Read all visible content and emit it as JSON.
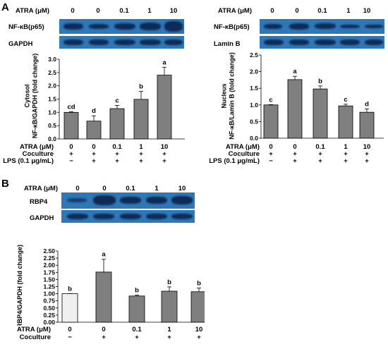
{
  "panel_a": {
    "letter": "A",
    "left": {
      "atra_label": "ATRA (μM)",
      "doses": [
        "0",
        "0",
        "0.1",
        "1",
        "10"
      ],
      "blot_labels": [
        "NF-κB(p65)",
        "GAPDH"
      ],
      "condition_rows": [
        {
          "label": "ATRA (μM)",
          "values": [
            "0",
            "0",
            "0.1",
            "1",
            "10"
          ]
        },
        {
          "label": "Coculture",
          "values": [
            "+",
            "+",
            "+",
            "+",
            "+"
          ]
        },
        {
          "label": "LPS (0.1 μg/mL)",
          "values": [
            "−",
            "+",
            "+",
            "+",
            "+"
          ]
        }
      ]
    },
    "right": {
      "atra_label": "ATRA (μM)",
      "doses": [
        "0",
        "0",
        "0.1",
        "1",
        "10"
      ],
      "blot_labels": [
        "NF-κB(p65)",
        "Lamin B"
      ],
      "condition_rows": [
        {
          "label": "ATRA (μM)",
          "values": [
            "0",
            "0",
            "0.1",
            "1",
            "10"
          ]
        },
        {
          "label": "Coculture",
          "values": [
            "+",
            "+",
            "+",
            "+",
            "+"
          ]
        },
        {
          "label": "LPS (0.1 μg/mL)",
          "values": [
            "−",
            "+",
            "+",
            "+",
            "+"
          ]
        }
      ]
    }
  },
  "panel_b": {
    "letter": "B",
    "atra_label": "ATRA (μM)",
    "doses": [
      "0",
      "0",
      "0.1",
      "1",
      "10"
    ],
    "blot_labels": [
      "RBP4",
      "GAPDH"
    ],
    "condition_rows": [
      {
        "label": "ATRA (μM)",
        "values": [
          "0",
          "0",
          "0.1",
          "1",
          "10"
        ]
      },
      {
        "label": "Coculture",
        "values": [
          "−",
          "+",
          "+",
          "+",
          "+"
        ]
      }
    ]
  },
  "chart_data": [
    {
      "type": "bar",
      "categories": [
        "0",
        "0",
        "0.1",
        "1",
        "10"
      ],
      "values": [
        1.0,
        0.67,
        1.14,
        1.49,
        2.4
      ],
      "errors": [
        0.02,
        0.2,
        0.12,
        0.3,
        0.3
      ],
      "letters": [
        "cd",
        "d",
        "c",
        "b",
        "a"
      ],
      "ylabel": "Cytosol\nNF-κB/GAPDH (fold change)",
      "ylim": [
        0,
        3.0
      ],
      "yticks": [
        "0.0",
        "0.5",
        "1.0",
        "1.5",
        "2.0",
        "2.5",
        "3.0"
      ],
      "bar_color": "#7f7f7f",
      "first_bar_color": "#7f7f7f"
    },
    {
      "type": "bar",
      "categories": [
        "0",
        "0",
        "0.1",
        "1",
        "10"
      ],
      "values": [
        1.0,
        1.76,
        1.48,
        0.97,
        0.78
      ],
      "errors": [
        0.01,
        0.1,
        0.09,
        0.05,
        0.1
      ],
      "letters": [
        "c",
        "a",
        "b",
        "c",
        "d"
      ],
      "ylabel": "Nucleus\nNF-κB/Lamin B (fold change)",
      "ylim": [
        0,
        2.5
      ],
      "yticks": [
        "0.0",
        "0.5",
        "1.0",
        "1.5",
        "2.0",
        "2.5"
      ],
      "bar_color": "#7f7f7f",
      "first_bar_color": "#7f7f7f"
    },
    {
      "type": "bar",
      "categories": [
        "0",
        "0",
        "0.1",
        "1",
        "10"
      ],
      "values": [
        1.0,
        1.76,
        0.92,
        1.09,
        1.07
      ],
      "errors": [
        0.0,
        0.45,
        0.03,
        0.15,
        0.13
      ],
      "letters": [
        "b",
        "a",
        "b",
        "b",
        "b"
      ],
      "ylabel": "RBP4/GAPDH (fold change)",
      "ylim": [
        0,
        2.5
      ],
      "yticks": [
        "0.00",
        "0.25",
        "0.50",
        "0.75",
        "1.00",
        "1.25",
        "1.50",
        "1.75",
        "2.00",
        "2.25",
        "2.50"
      ],
      "bar_color": "#7f7f7f",
      "first_bar_color": "#f0f0f0"
    }
  ]
}
